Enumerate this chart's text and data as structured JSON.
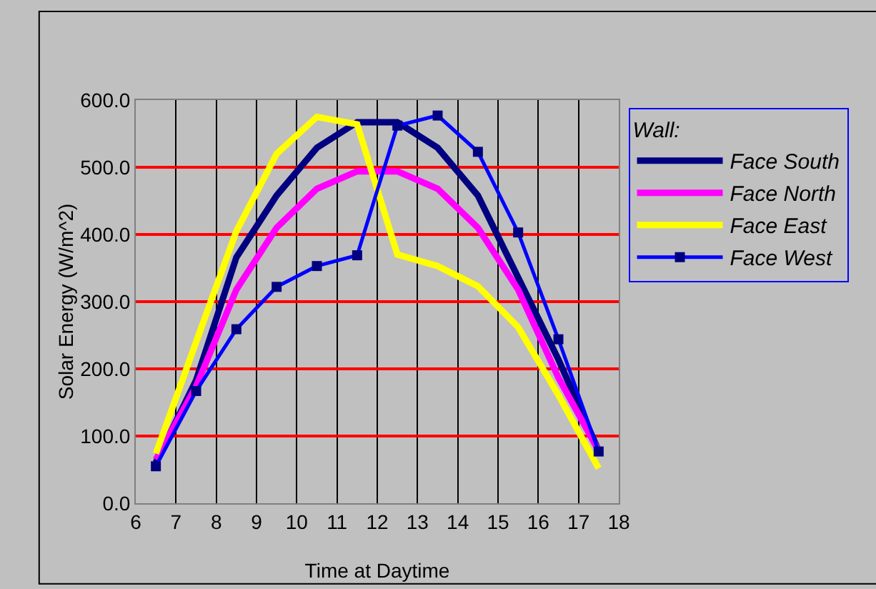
{
  "chart_data": {
    "type": "line",
    "xlabel": "Time at Daytime",
    "ylabel": "Solar Energy (W/m^2)",
    "legend_title": "Wall:",
    "x": [
      6.5,
      7.5,
      8.5,
      9.5,
      10.5,
      11.5,
      12.5,
      13.5,
      14.5,
      15.5,
      16.5,
      17.5
    ],
    "series": [
      {
        "name": "Face South",
        "color": "#000080",
        "marker": "none",
        "values": [
          61,
          183,
          366,
          458,
          529,
          567,
          567,
          529,
          458,
          336,
          214,
          78
        ]
      },
      {
        "name": "Face North",
        "color": "#ff00ff",
        "marker": "none",
        "values": [
          65,
          174,
          318,
          410,
          468,
          494,
          494,
          468,
          410,
          318,
          187,
          78
        ]
      },
      {
        "name": "Face East",
        "color": "#ffff00",
        "marker": "none",
        "values": [
          74,
          240,
          405,
          520,
          575,
          564,
          370,
          353,
          323,
          262,
          161,
          52
        ]
      },
      {
        "name": "Face West",
        "color": "#0000ff",
        "marker": "square",
        "values": [
          55,
          167,
          259,
          322,
          353,
          369,
          562,
          577,
          523,
          403,
          244,
          77
        ]
      }
    ],
    "xlim": [
      6,
      18
    ],
    "xticks": [
      6,
      7,
      8,
      9,
      10,
      11,
      12,
      13,
      14,
      15,
      16,
      17,
      18
    ],
    "ylim": [
      0,
      600
    ],
    "yticks": [
      {
        "value": 0,
        "label": "0.0"
      },
      {
        "value": 100,
        "label": "100.0"
      },
      {
        "value": 200,
        "label": "200.0"
      },
      {
        "value": 300,
        "label": "300.0"
      },
      {
        "value": 400,
        "label": "400.0"
      },
      {
        "value": 500,
        "label": "500.0"
      },
      {
        "value": 600,
        "label": "600.0"
      }
    ],
    "grid": true,
    "legend": "right",
    "line_style": "solid"
  }
}
